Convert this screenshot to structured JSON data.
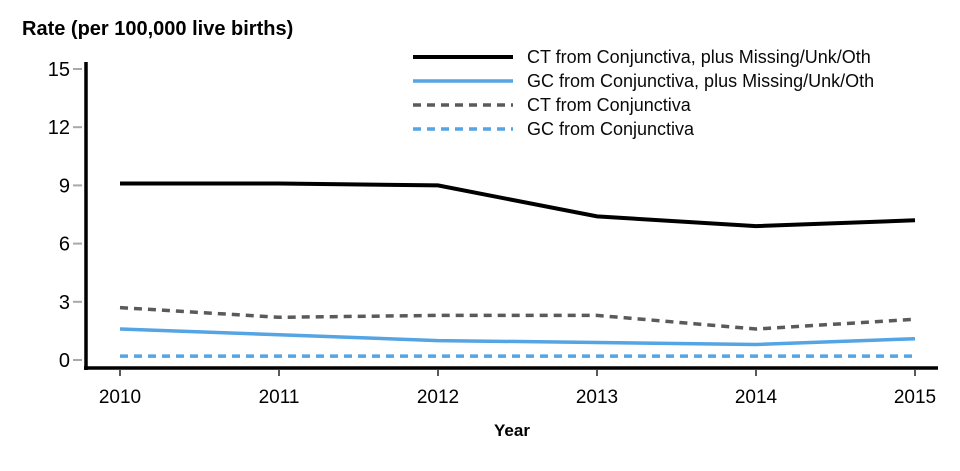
{
  "chart_data": {
    "type": "line",
    "title": "Rate (per 100,000 live births)",
    "xlabel": "Year",
    "categories": [
      "2010",
      "2011",
      "2012",
      "2013",
      "2014",
      "2015"
    ],
    "y_ticks": [
      0,
      3,
      6,
      9,
      12,
      15
    ],
    "ylim": [
      0,
      15
    ],
    "grid": false,
    "legend_position": "top-right",
    "axis_color": "#000000",
    "y_tick_color": "#a7a9ac",
    "x_tick_color": "#58595b",
    "series": [
      {
        "name": "CT from Conjunctiva, plus Missing/Unk/Oth",
        "values": [
          9.1,
          9.1,
          9.0,
          7.4,
          6.9,
          7.2
        ],
        "color": "#000000",
        "style": "solid"
      },
      {
        "name": "GC from Conjunctiva, plus Missing/Unk/Oth",
        "values": [
          1.6,
          1.3,
          1.0,
          0.9,
          0.8,
          1.1
        ],
        "color": "#55a4e4",
        "style": "solid"
      },
      {
        "name": "CT from Conjunctiva",
        "values": [
          2.7,
          2.2,
          2.3,
          2.3,
          1.6,
          2.1
        ],
        "color": "#595a5c",
        "style": "dashed"
      },
      {
        "name": "GC from Conjunctiva",
        "values": [
          0.2,
          0.2,
          0.2,
          0.2,
          0.2,
          0.2
        ],
        "color": "#55a4e4",
        "style": "dashed"
      }
    ]
  }
}
